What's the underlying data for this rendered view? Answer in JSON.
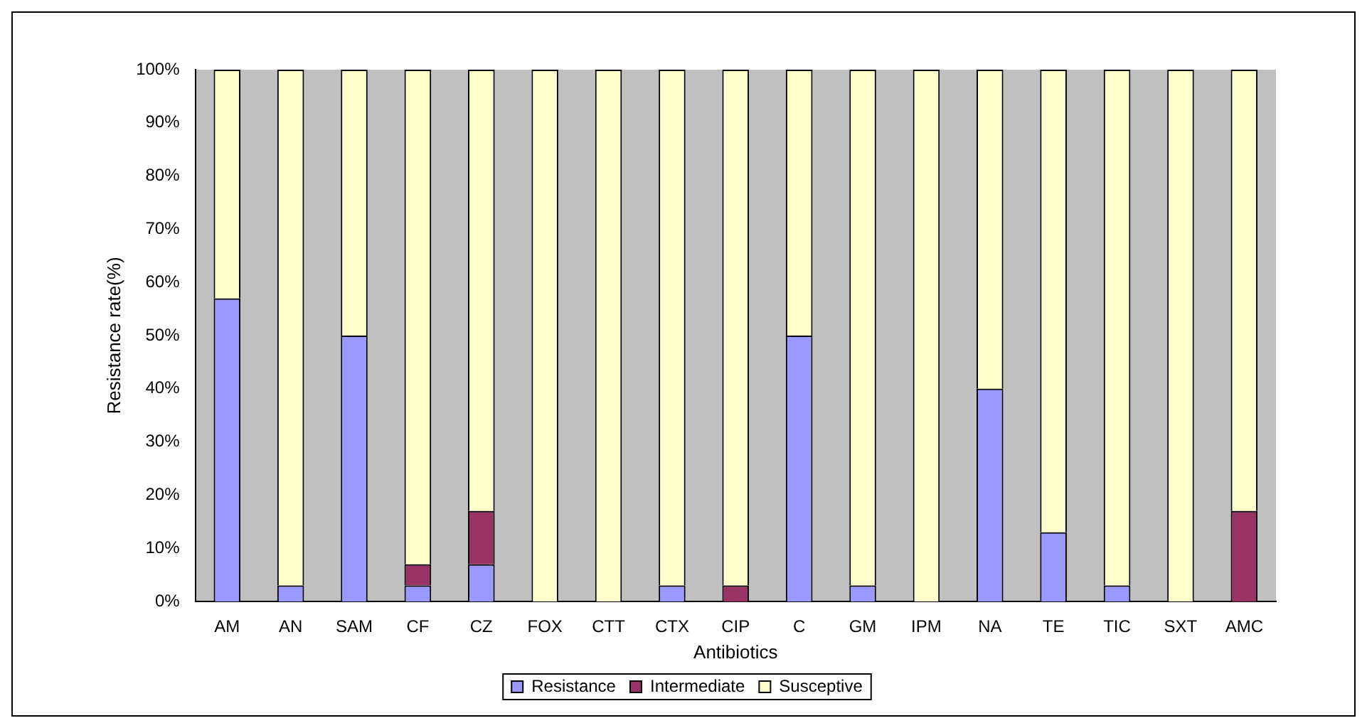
{
  "chart_data": {
    "type": "bar",
    "stacked": true,
    "xlabel": "Antibiotics",
    "ylabel": "Resistance rate(%)",
    "categories": [
      "AM",
      "AN",
      "SAM",
      "CF",
      "CZ",
      "FOX",
      "CTT",
      "CTX",
      "CIP",
      "C",
      "GM",
      "IPM",
      "NA",
      "TE",
      "TIC",
      "SXT",
      "AMC"
    ],
    "series": [
      {
        "name": "Resistance",
        "color": "#9999ff",
        "values": [
          57,
          3,
          50,
          3,
          7,
          0,
          0,
          3,
          0,
          50,
          3,
          0,
          40,
          13,
          3,
          0,
          0
        ]
      },
      {
        "name": "Intermediate",
        "color": "#993366",
        "values": [
          0,
          0,
          0,
          4,
          10,
          0,
          0,
          0,
          3,
          0,
          0,
          0,
          0,
          0,
          0,
          0,
          17
        ]
      },
      {
        "name": "Susceptive",
        "color": "#ffffcc",
        "values": [
          43,
          97,
          50,
          93,
          83,
          100,
          100,
          97,
          97,
          50,
          97,
          100,
          60,
          87,
          97,
          100,
          83
        ]
      }
    ],
    "ylim": [
      0,
      100
    ],
    "yticks": [
      {
        "value": 0,
        "label": "0%"
      },
      {
        "value": 10,
        "label": "10%"
      },
      {
        "value": 20,
        "label": "20%"
      },
      {
        "value": 30,
        "label": "30%"
      },
      {
        "value": 40,
        "label": "40%"
      },
      {
        "value": 50,
        "label": "50%"
      },
      {
        "value": 60,
        "label": "60%"
      },
      {
        "value": 70,
        "label": "70%"
      },
      {
        "value": 80,
        "label": "80%"
      },
      {
        "value": 90,
        "label": "90%"
      },
      {
        "value": 100,
        "label": "100%"
      }
    ],
    "grid": false,
    "legend": "bottom"
  }
}
